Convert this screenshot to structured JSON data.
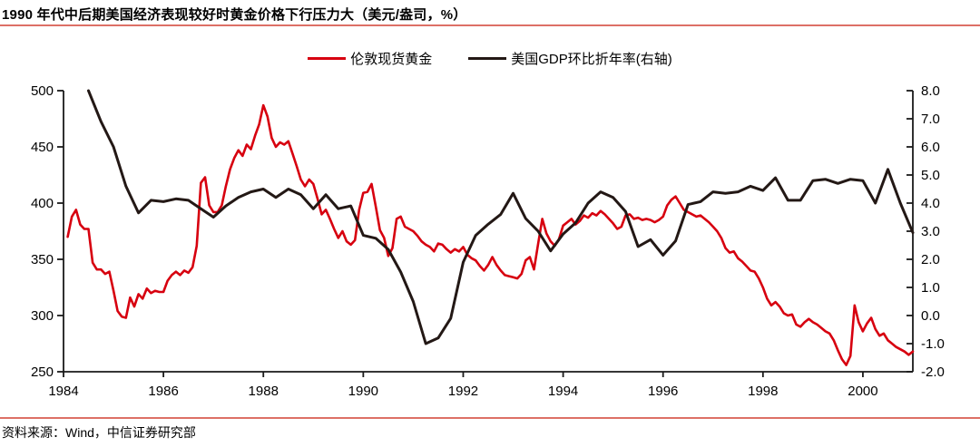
{
  "header": {
    "title": "1990 年代中后期美国经济表现较好时黄金价格下行压力大（美元/盎司，%）"
  },
  "legend": [
    {
      "label": "伦敦现货黄金",
      "color": "#d7000f"
    },
    {
      "label": "美国GDP环比折年率(右轴)",
      "color": "#231815"
    }
  ],
  "footer": {
    "source": "资料来源：Wind，中信证券研究部"
  },
  "colors": {
    "accent_red": "#d7000f",
    "line_black": "#231815",
    "rule_red": "#dd7066",
    "axis": "#1a1a1a",
    "background": "#ffffff"
  },
  "chart_data": {
    "type": "line",
    "title": "1990 年代中后期美国经济表现较好时黄金价格下行压力大（美元/盎司，%）",
    "xlabel": "",
    "ylabel_left": "美元/盎司",
    "ylabel_right": "%",
    "grid": false,
    "legend_position": "top-center",
    "axis_color": "#1a1a1a",
    "x_axis": {
      "min": 1984,
      "max": 2001,
      "tick_years": [
        1984,
        1986,
        1988,
        1990,
        1992,
        1994,
        1996,
        1998,
        2000
      ]
    },
    "left_axis": {
      "min": 250,
      "max": 500,
      "ticks": [
        500,
        450,
        400,
        350,
        300,
        250
      ]
    },
    "right_axis": {
      "min": -2,
      "max": 8,
      "ticks": [
        8,
        7,
        6,
        5,
        4,
        3,
        2,
        1,
        0,
        -1,
        -2
      ],
      "decimals": 1
    },
    "series": [
      {
        "id": "gold-price-line",
        "name": "伦敦现货黄金",
        "axis": "left",
        "color": "#d7000f",
        "width": 2.6,
        "frequency": "monthly",
        "x_start": 1984.0833,
        "x_step": 0.083333,
        "values": [
          370,
          388,
          394,
          381,
          377,
          377,
          347,
          341,
          341,
          337,
          339,
          322,
          304,
          299,
          298,
          316,
          308,
          319,
          315,
          324,
          320,
          322,
          321,
          321,
          331,
          336,
          339,
          336,
          340,
          338,
          343,
          362,
          418,
          423,
          398,
          392,
          392,
          398,
          415,
          430,
          440,
          447,
          442,
          452,
          448,
          460,
          470,
          487,
          477,
          458,
          450,
          454,
          452,
          455,
          444,
          433,
          421,
          415,
          421,
          417,
          404,
          390,
          394,
          386,
          377,
          369,
          375,
          366,
          363,
          367,
          394,
          409,
          410,
          417,
          397,
          376,
          369,
          353,
          360,
          386,
          388,
          379,
          377,
          375,
          371,
          366,
          363,
          361,
          357,
          364,
          363,
          359,
          356,
          359,
          357,
          361,
          354,
          351,
          349,
          344,
          340,
          345,
          352,
          345,
          340,
          336,
          335,
          334,
          333,
          337,
          349,
          352,
          341,
          364,
          386,
          373,
          366,
          362,
          368,
          380,
          383,
          386,
          381,
          384,
          389,
          387,
          391,
          389,
          393,
          390,
          386,
          382,
          377,
          379,
          389,
          390,
          386,
          387,
          385,
          386,
          385,
          383,
          385,
          388,
          398,
          403,
          406,
          400,
          394,
          392,
          390,
          388,
          389,
          386,
          383,
          379,
          375,
          369,
          360,
          356,
          357,
          351,
          348,
          344,
          340,
          339,
          333,
          325,
          315,
          309,
          312,
          308,
          302,
          300,
          301,
          292,
          290,
          294,
          297,
          294,
          292,
          289,
          286,
          284,
          278,
          269,
          261,
          256,
          264,
          309,
          294,
          286,
          293,
          298,
          288,
          282,
          284,
          278,
          275,
          272,
          270,
          268,
          265,
          268
        ]
      },
      {
        "id": "gdp-line",
        "name": "美国GDP环比折年率(右轴)",
        "axis": "right",
        "color": "#231815",
        "width": 3,
        "frequency": "quarterly",
        "x_start": 1984.5,
        "x_step": 0.25,
        "values": [
          8.0,
          6.9,
          6.0,
          4.6,
          3.65,
          4.1,
          4.05,
          4.15,
          4.1,
          3.8,
          3.5,
          3.9,
          4.2,
          4.4,
          4.5,
          4.2,
          4.5,
          4.3,
          3.8,
          4.3,
          3.8,
          3.9,
          2.85,
          2.75,
          2.35,
          1.55,
          0.5,
          -1.0,
          -0.8,
          -0.1,
          1.9,
          2.85,
          3.25,
          3.6,
          4.35,
          3.45,
          3.0,
          2.3,
          2.9,
          3.3,
          4.0,
          4.4,
          4.2,
          3.7,
          2.45,
          2.7,
          2.15,
          2.65,
          3.95,
          4.05,
          4.4,
          4.35,
          4.4,
          4.6,
          4.45,
          4.9,
          4.1,
          4.1,
          4.8,
          4.85,
          4.7,
          4.85,
          4.8,
          4.0,
          5.2,
          4.0,
          2.95
        ]
      }
    ]
  }
}
